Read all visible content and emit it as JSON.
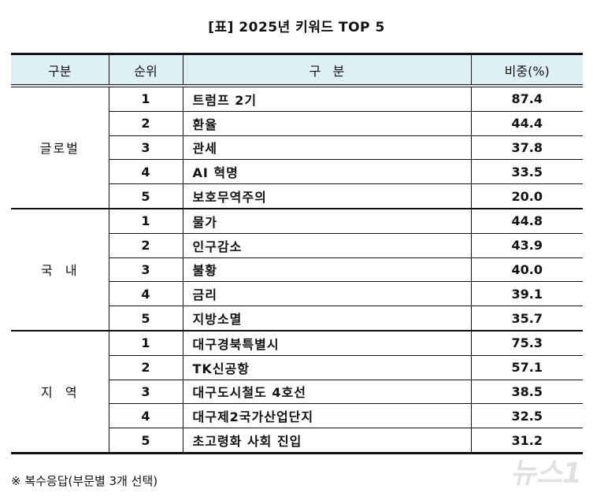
{
  "title": "[표] 2025년 키워드 TOP 5",
  "headers": [
    "구분",
    "순위",
    "구   분",
    "비중(%)"
  ],
  "groups": [
    {
      "name": "글로벌",
      "rows": [
        {
          "rank": "1",
          "keyword": "트럼프 2기",
          "value": "87.4"
        },
        {
          "rank": "2",
          "keyword": "환율",
          "value": "44.4"
        },
        {
          "rank": "3",
          "keyword": "관세",
          "value": "37.8"
        },
        {
          "rank": "4",
          "keyword": "AI 혁명",
          "value": "33.5"
        },
        {
          "rank": "5",
          "keyword": "보호무역주의",
          "value": "20.0"
        }
      ]
    },
    {
      "name": "국  내",
      "rows": [
        {
          "rank": "1",
          "keyword": "물가",
          "value": "44.8"
        },
        {
          "rank": "2",
          "keyword": "인구감소",
          "value": "43.9"
        },
        {
          "rank": "3",
          "keyword": "불황",
          "value": "40.0"
        },
        {
          "rank": "4",
          "keyword": "금리",
          "value": "39.1"
        },
        {
          "rank": "5",
          "keyword": "지방소멸",
          "value": "35.7"
        }
      ]
    },
    {
      "name": "지  역",
      "rows": [
        {
          "rank": "1",
          "keyword": "대구경북특별시",
          "value": "75.3"
        },
        {
          "rank": "2",
          "keyword": "TK신공항",
          "value": "57.1"
        },
        {
          "rank": "3",
          "keyword": "대구도시철도 4호선",
          "value": "38.5"
        },
        {
          "rank": "4",
          "keyword": "대구제2국가산업단지",
          "value": "32.5"
        },
        {
          "rank": "5",
          "keyword": "초고령화 사회 진입",
          "value": "31.2"
        }
      ]
    }
  ],
  "note": "※ 복수응답(부문별 3개 선택)",
  "watermark": "뉴스1"
}
